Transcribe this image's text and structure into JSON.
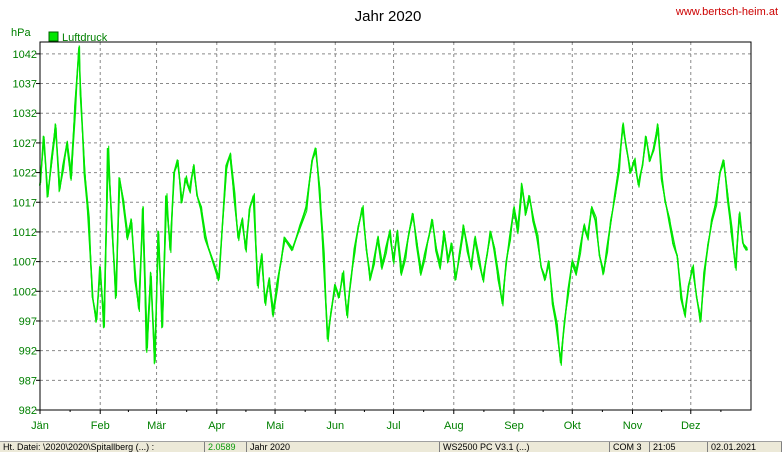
{
  "chart_data": {
    "type": "line",
    "title": "Jahr 2020",
    "ylabel": "hPa",
    "watermark": "www.bertsch-heim.at",
    "legend": {
      "placement": "top-left",
      "entries": [
        {
          "name": "Luftdruck",
          "color": "#00e600"
        }
      ]
    },
    "ylim": [
      982,
      1044
    ],
    "yticks": [
      982,
      987,
      992,
      997,
      1002,
      1007,
      1012,
      1017,
      1022,
      1027,
      1032,
      1037,
      1042
    ],
    "xticks": [
      "Jän",
      "Feb",
      "Mär",
      "Apr",
      "Mai",
      "Jun",
      "Jul",
      "Aug",
      "Sep",
      "Okt",
      "Nov",
      "Dez"
    ],
    "x_unit": "day-of-year",
    "grid": true,
    "colors": {
      "series": "#00e600",
      "axis_text": "#008000",
      "watermark": "#cc0000",
      "grid": "#888888"
    },
    "series": [
      {
        "name": "Luftdruck",
        "x": [
          1,
          3,
          5,
          7,
          9,
          11,
          13,
          15,
          17,
          19,
          21,
          22,
          24,
          26,
          28,
          30,
          32,
          34,
          36,
          38,
          40,
          42,
          44,
          46,
          48,
          50,
          52,
          54,
          56,
          58,
          60,
          62,
          64,
          66,
          68,
          70,
          72,
          74,
          76,
          78,
          80,
          82,
          84,
          86,
          88,
          93,
          97,
          99,
          101,
          103,
          105,
          107,
          109,
          111,
          113,
          115,
          117,
          119,
          121,
          123,
          125,
          127,
          131,
          135,
          138,
          141,
          143,
          145,
          147,
          149,
          151,
          153,
          155,
          157,
          159,
          161,
          163,
          165,
          167,
          169,
          171,
          173,
          175,
          177,
          179,
          181,
          183,
          185,
          187,
          189,
          191,
          193,
          195,
          197,
          199,
          201,
          203,
          205,
          207,
          209,
          211,
          213,
          215,
          217,
          219,
          221,
          223,
          225,
          227,
          229,
          231,
          233,
          235,
          237,
          239,
          241,
          243,
          245,
          247,
          249,
          251,
          253,
          255,
          257,
          259,
          261,
          263,
          265,
          267,
          269,
          271,
          273,
          275,
          277,
          279,
          281,
          283,
          285,
          287,
          289,
          291,
          293,
          295,
          297,
          299,
          301,
          303,
          305,
          307,
          309,
          311,
          313,
          315,
          317,
          319,
          321,
          323,
          325,
          327,
          329,
          331,
          333,
          335,
          337,
          339,
          341,
          343,
          345,
          347,
          349,
          351,
          353,
          355,
          357,
          359,
          361,
          363,
          365
        ],
        "values": [
          1020,
          1028,
          1018,
          1024,
          1030,
          1019,
          1023,
          1027,
          1021,
          1033,
          1043,
          1035,
          1022,
          1014,
          1001,
          997,
          1006,
          996,
          1026,
          1013,
          1001,
          1021,
          1017,
          1011,
          1014,
          1004,
          999,
          1016,
          992,
          1005,
          990,
          1012,
          996,
          1018,
          1009,
          1022,
          1024,
          1017,
          1021,
          1019,
          1023,
          1018,
          1016,
          1011,
          1009,
          1004,
          1023,
          1025,
          1018,
          1011,
          1014,
          1009,
          1016,
          1018,
          1003,
          1008,
          1000,
          1004,
          998,
          1003,
          1007,
          1011,
          1009,
          1013,
          1016,
          1024,
          1026,
          1019,
          1008,
          994,
          999,
          1003,
          1001,
          1005,
          998,
          1004,
          1009,
          1013,
          1016,
          1009,
          1004,
          1007,
          1011,
          1006,
          1009,
          1012,
          1007,
          1012,
          1005,
          1008,
          1012,
          1015,
          1010,
          1005,
          1008,
          1011,
          1014,
          1009,
          1006,
          1012,
          1007,
          1010,
          1004,
          1008,
          1013,
          1009,
          1006,
          1011,
          1007,
          1004,
          1008,
          1012,
          1009,
          1004,
          1000,
          1007,
          1011,
          1016,
          1012,
          1020,
          1015,
          1018,
          1014,
          1011,
          1006,
          1004,
          1007,
          1000,
          996,
          990,
          997,
          1002,
          1007,
          1005,
          1009,
          1013,
          1011,
          1016,
          1014,
          1008,
          1005,
          1009,
          1014,
          1018,
          1023,
          1030,
          1026,
          1022,
          1024,
          1020,
          1023,
          1028,
          1024,
          1026,
          1030,
          1021,
          1017,
          1014,
          1010,
          1008,
          1001,
          998,
          1003,
          1006,
          1001,
          997,
          1005,
          1010,
          1014,
          1017,
          1022,
          1024,
          1018,
          1012,
          1006,
          1015,
          1010,
          1009
        ]
      }
    ]
  },
  "statusbar": {
    "segments": [
      "Ht. Datei: \\2020\\2020\\Spitallberg (...) :",
      "2.0589",
      "Jahr 2020",
      "WS2500 PC V3.1 (...)",
      "COM 3",
      "21:05",
      "02.01.2021"
    ]
  }
}
